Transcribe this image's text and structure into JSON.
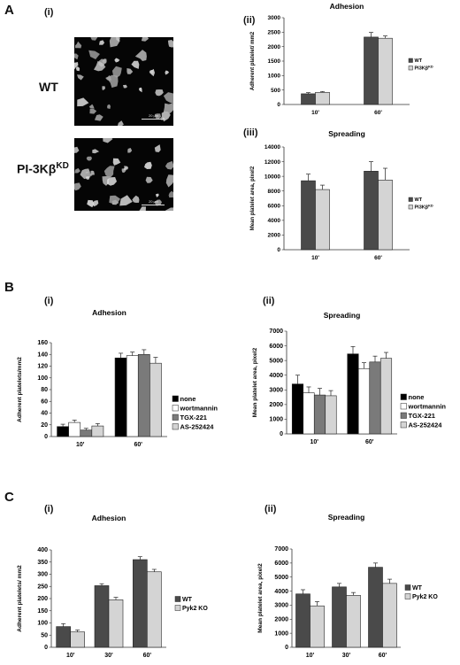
{
  "panels": [
    {
      "label": "A",
      "subpanels": [
        "(i)",
        "(ii)",
        "(iii)"
      ]
    },
    {
      "label": "B",
      "subpanels": [
        "(i)",
        "(ii)"
      ]
    },
    {
      "label": "C",
      "subpanels": [
        "(i)",
        "(ii)"
      ]
    }
  ],
  "micrographs": [
    {
      "genotype": "WT",
      "genotype_sup": "",
      "scale_text": "20 µm"
    },
    {
      "genotype": "PI-3Kβ",
      "genotype_sup": "KD",
      "scale_text": "20 µm"
    }
  ],
  "colors": {
    "black": "#000000",
    "dark": "#4a4a4a",
    "mid": "#7a7a7a",
    "light": "#d4d4d4",
    "white": "#ffffff"
  },
  "chart_data": [
    {
      "id": "A-ii",
      "type": "bar",
      "title": "Adhesion",
      "ylabel": "Adherent platelet/ mm2",
      "xlabel": "",
      "categories": [
        "10'",
        "60'"
      ],
      "ylim": [
        0,
        3000
      ],
      "yticks": [
        0,
        500,
        1000,
        1500,
        2000,
        2500,
        3000
      ],
      "series": [
        {
          "name": "WT",
          "color": "#4a4a4a",
          "values": [
            370,
            2330
          ],
          "errors": [
            40,
            160
          ]
        },
        {
          "name": "PI3Kβ",
          "name_sup": "KD",
          "color": "#d4d4d4",
          "values": [
            420,
            2290
          ],
          "errors": [
            30,
            80
          ]
        }
      ],
      "legend": "right"
    },
    {
      "id": "A-iii",
      "type": "bar",
      "title": "Spreading",
      "ylabel": "Mean platelet area, pixel2",
      "xlabel": "",
      "categories": [
        "10'",
        "60'"
      ],
      "ylim": [
        0,
        14000
      ],
      "yticks": [
        0,
        2000,
        4000,
        6000,
        8000,
        10000,
        12000,
        14000
      ],
      "series": [
        {
          "name": "WT",
          "color": "#4a4a4a",
          "values": [
            9400,
            10700
          ],
          "errors": [
            900,
            1300
          ]
        },
        {
          "name": "PI3Kβ",
          "name_sup": "KD",
          "color": "#d4d4d4",
          "values": [
            8200,
            9500
          ],
          "errors": [
            600,
            1600
          ]
        }
      ],
      "legend": "right"
    },
    {
      "id": "B-i",
      "type": "bar",
      "title": "Adhesion",
      "ylabel": "Adherent platelets/mm2",
      "xlabel": "",
      "categories": [
        "10'",
        "60'"
      ],
      "ylim": [
        0,
        160
      ],
      "yticks": [
        0,
        20,
        40,
        60,
        80,
        100,
        120,
        140,
        160
      ],
      "series": [
        {
          "name": "none",
          "color": "#000000",
          "values": [
            17,
            134
          ],
          "errors": [
            4,
            8
          ]
        },
        {
          "name": "wortmannin",
          "color": "#ffffff",
          "values": [
            24,
            138
          ],
          "errors": [
            4,
            6
          ]
        },
        {
          "name": "TGX-221",
          "color": "#7a7a7a",
          "values": [
            11,
            140
          ],
          "errors": [
            3,
            8
          ]
        },
        {
          "name": "AS-252424",
          "color": "#d4d4d4",
          "values": [
            18,
            125
          ],
          "errors": [
            4,
            10
          ]
        }
      ],
      "legend": "right"
    },
    {
      "id": "B-ii",
      "type": "bar",
      "title": "Spreading",
      "ylabel": "Mean platelet area, pixel2",
      "xlabel": "",
      "categories": [
        "10'",
        "60'"
      ],
      "ylim": [
        0,
        7000
      ],
      "yticks": [
        0,
        1000,
        2000,
        3000,
        4000,
        5000,
        6000,
        7000
      ],
      "series": [
        {
          "name": "none",
          "color": "#000000",
          "values": [
            3400,
            5450
          ],
          "errors": [
            600,
            500
          ]
        },
        {
          "name": "wortmannin",
          "color": "#ffffff",
          "values": [
            2800,
            4450
          ],
          "errors": [
            400,
            400
          ]
        },
        {
          "name": "TGX-221",
          "color": "#7a7a7a",
          "values": [
            2650,
            4900
          ],
          "errors": [
            450,
            400
          ]
        },
        {
          "name": "AS-252424",
          "color": "#d4d4d4",
          "values": [
            2600,
            5150
          ],
          "errors": [
            350,
            400
          ]
        }
      ],
      "legend": "right"
    },
    {
      "id": "C-i",
      "type": "bar",
      "title": "Adhesion",
      "ylabel": "Adherent platelets/ mm2",
      "xlabel": "",
      "categories": [
        "10'",
        "30'",
        "60'"
      ],
      "ylim": [
        0,
        400
      ],
      "yticks": [
        0,
        50,
        100,
        150,
        200,
        250,
        300,
        350,
        400
      ],
      "series": [
        {
          "name": "WT",
          "color": "#4a4a4a",
          "values": [
            85,
            253,
            360
          ],
          "errors": [
            12,
            8,
            12
          ]
        },
        {
          "name": "Pyk2 KO",
          "color": "#d4d4d4",
          "values": [
            63,
            195,
            310
          ],
          "errors": [
            8,
            10,
            10
          ]
        }
      ],
      "legend": "right"
    },
    {
      "id": "C-ii",
      "type": "bar",
      "title": "Spreading",
      "ylabel": "Mean platelet area, pixel2",
      "xlabel": "",
      "categories": [
        "10'",
        "30'",
        "60'"
      ],
      "ylim": [
        0,
        7000
      ],
      "yticks": [
        0,
        1000,
        2000,
        3000,
        4000,
        5000,
        6000,
        7000
      ],
      "series": [
        {
          "name": "WT",
          "color": "#4a4a4a",
          "values": [
            3800,
            4300,
            5700
          ],
          "errors": [
            300,
            250,
            300
          ]
        },
        {
          "name": "Pyk2 KO",
          "color": "#d4d4d4",
          "values": [
            2950,
            3700,
            4550
          ],
          "errors": [
            300,
            200,
            300
          ]
        }
      ],
      "legend": "right"
    }
  ]
}
